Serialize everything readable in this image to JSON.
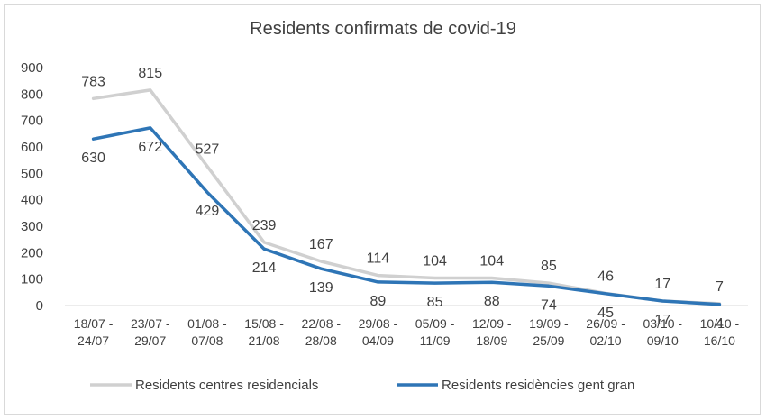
{
  "chart_data": {
    "type": "line",
    "title": "Residents confirmats de covid-19",
    "xlabel": "",
    "ylabel": "",
    "ylim": [
      0,
      900
    ],
    "yticks": [
      0,
      100,
      200,
      300,
      400,
      500,
      600,
      700,
      800,
      900
    ],
    "grid": false,
    "legend_position": "bottom",
    "categories": [
      [
        "18/07 -",
        "24/07"
      ],
      [
        "23/07 -",
        "29/07"
      ],
      [
        "01/08 -",
        "07/08"
      ],
      [
        "15/08 -",
        "21/08"
      ],
      [
        "22/08 -",
        "28/08"
      ],
      [
        "29/08 -",
        "04/09"
      ],
      [
        "05/09 -",
        "11/09"
      ],
      [
        "12/09 -",
        "18/09"
      ],
      [
        "19/09 -",
        "25/09"
      ],
      [
        "26/09 -",
        "02/10"
      ],
      [
        "03/10 -",
        "09/10"
      ],
      [
        "10/10 -",
        "16/10"
      ]
    ],
    "series": [
      {
        "name": "Residents centres residencials",
        "color": "#d0d0d0",
        "values": [
          783,
          815,
          527,
          239,
          167,
          114,
          104,
          104,
          85,
          46,
          17,
          7
        ],
        "label_position": "above"
      },
      {
        "name": "Residents residències gent gran",
        "color": "#2e75b6",
        "values": [
          630,
          672,
          429,
          214,
          139,
          89,
          85,
          88,
          74,
          45,
          17,
          4
        ],
        "label_position": "below"
      }
    ]
  }
}
